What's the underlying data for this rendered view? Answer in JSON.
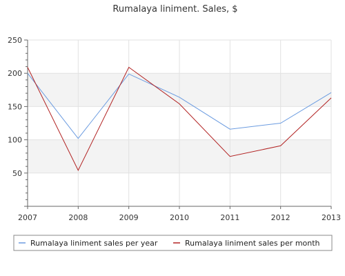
{
  "chart_data": {
    "type": "line",
    "title": "Rumalaya liniment. Sales, $",
    "xlabel": "",
    "ylabel": "",
    "x": [
      "2007",
      "2008",
      "2009",
      "2010",
      "2011",
      "2012",
      "2013"
    ],
    "yticks": [
      "50",
      "100",
      "150",
      "200",
      "250"
    ],
    "ylim": [
      0,
      250
    ],
    "grid": true,
    "legend_position": "bottom",
    "series": [
      {
        "name": "Rumalaya liniment sales per year",
        "color": "#6a9be0",
        "values": [
          200,
          102,
          199,
          164,
          116,
          125,
          171
        ]
      },
      {
        "name": "Rumalaya liniment sales per month",
        "color": "#b22222",
        "values": [
          209,
          54,
          209,
          154,
          75,
          91,
          163
        ]
      }
    ]
  }
}
